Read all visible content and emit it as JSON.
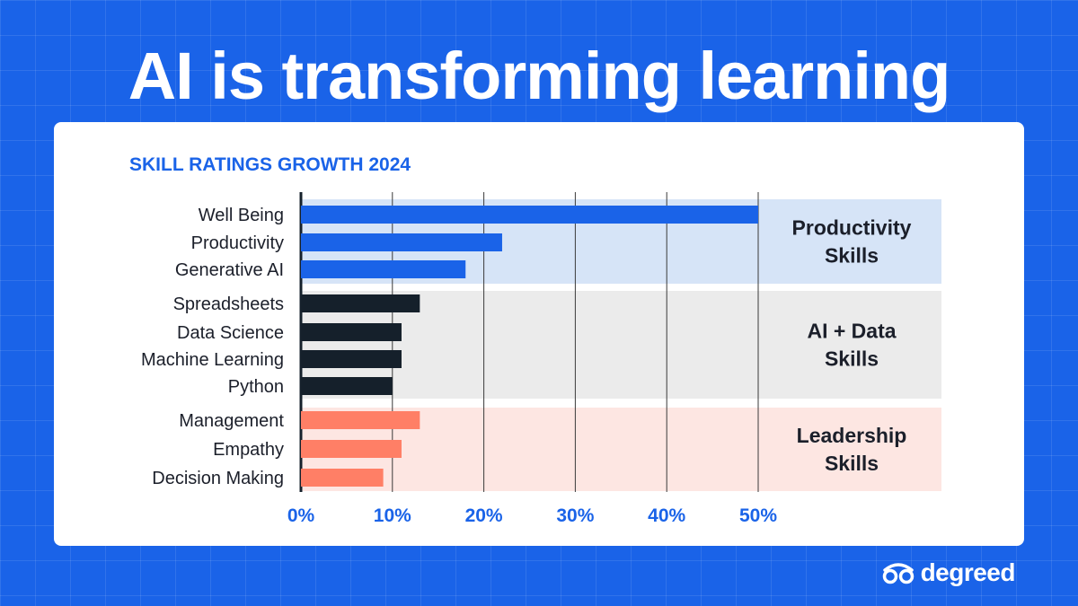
{
  "headline": "AI is transforming learning",
  "brand": {
    "name": "degreed",
    "logo_icon": "degreed-glasses-logo"
  },
  "colors": {
    "background": "#1a63e8",
    "productivity_bar": "#1a63e8",
    "ai_data_bar": "#15202b",
    "leadership_bar": "#ff7f66",
    "productivity_band": "#d6e4f7",
    "ai_data_band": "#ebebeb",
    "leadership_band": "#fde6e2"
  },
  "chart_data": {
    "type": "bar",
    "orientation": "horizontal",
    "title": "SKILL RATINGS GROWTH 2024",
    "xlabel": "",
    "ylabel": "",
    "xlim": [
      0,
      50
    ],
    "x_ticks": [
      "0%",
      "10%",
      "20%",
      "30%",
      "40%",
      "50%"
    ],
    "grid": true,
    "groups": [
      {
        "name": "Productivity Skills",
        "name_lines": [
          "Productivity",
          "Skills"
        ],
        "color": "#1a63e8",
        "band_color": "#d6e4f7",
        "categories": [
          "Well Being",
          "Productivity",
          "Generative AI"
        ],
        "values": [
          50,
          22,
          18
        ]
      },
      {
        "name": "AI + Data Skills",
        "name_lines": [
          "AI + Data",
          "Skills"
        ],
        "color": "#15202b",
        "band_color": "#ebebeb",
        "categories": [
          "Spreadsheets",
          "Data Science",
          "Machine Learning",
          "Python"
        ],
        "values": [
          13,
          11,
          11,
          10
        ]
      },
      {
        "name": "Leadership Skills",
        "name_lines": [
          "Leadership",
          "Skills"
        ],
        "color": "#ff7f66",
        "band_color": "#fde6e2",
        "categories": [
          "Management",
          "Empathy",
          "Decision Making"
        ],
        "values": [
          13,
          11,
          9
        ]
      }
    ]
  }
}
